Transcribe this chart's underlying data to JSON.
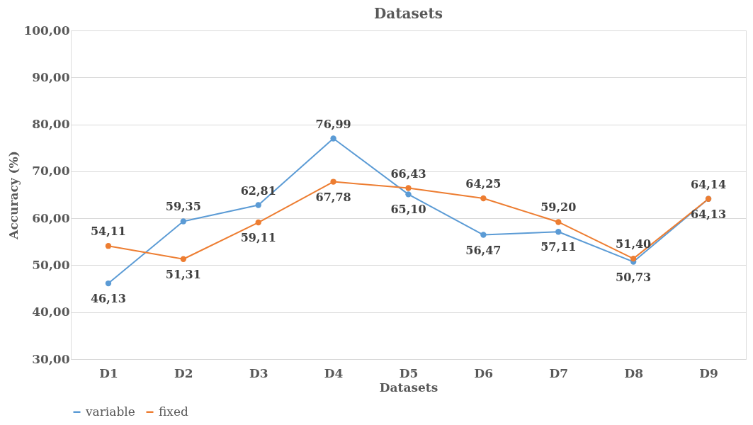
{
  "chart_data": {
    "type": "line",
    "title": "Datasets",
    "xlabel": "Datasets",
    "ylabel": "Accuracy (%)",
    "categories": [
      "D1",
      "D2",
      "D3",
      "D4",
      "D5",
      "D6",
      "D7",
      "D8",
      "D9"
    ],
    "series": [
      {
        "name": "variable",
        "color": "#5b9bd5",
        "values": [
          46.13,
          59.35,
          62.81,
          76.99,
          65.1,
          56.47,
          57.11,
          50.73,
          64.13
        ],
        "value_labels": [
          "46,13",
          "59,35",
          "62,81",
          "76,99",
          "65,10",
          "56,47",
          "57,11",
          "50,73",
          "64,13"
        ]
      },
      {
        "name": "fixed",
        "color": "#ed7d31",
        "values": [
          54.11,
          51.31,
          59.11,
          67.78,
          66.43,
          64.25,
          59.2,
          51.4,
          64.14
        ],
        "value_labels": [
          "54,11",
          "51,31",
          "59,11",
          "67,78",
          "66,43",
          "64,25",
          "59,20",
          "51,40",
          "64,14"
        ]
      }
    ],
    "ylim": [
      30,
      100
    ],
    "yticks": [
      {
        "value": 30,
        "label": "30,00"
      },
      {
        "value": 40,
        "label": "40,00"
      },
      {
        "value": 50,
        "label": "50,00"
      },
      {
        "value": 60,
        "label": "60,00"
      },
      {
        "value": 70,
        "label": "70,00"
      },
      {
        "value": 80,
        "label": "80,00"
      },
      {
        "value": 90,
        "label": "90,00"
      },
      {
        "value": 100,
        "label": "100,00"
      }
    ],
    "grid": "y",
    "legend": "bottom",
    "marker": "circle",
    "line_style": "solid"
  }
}
